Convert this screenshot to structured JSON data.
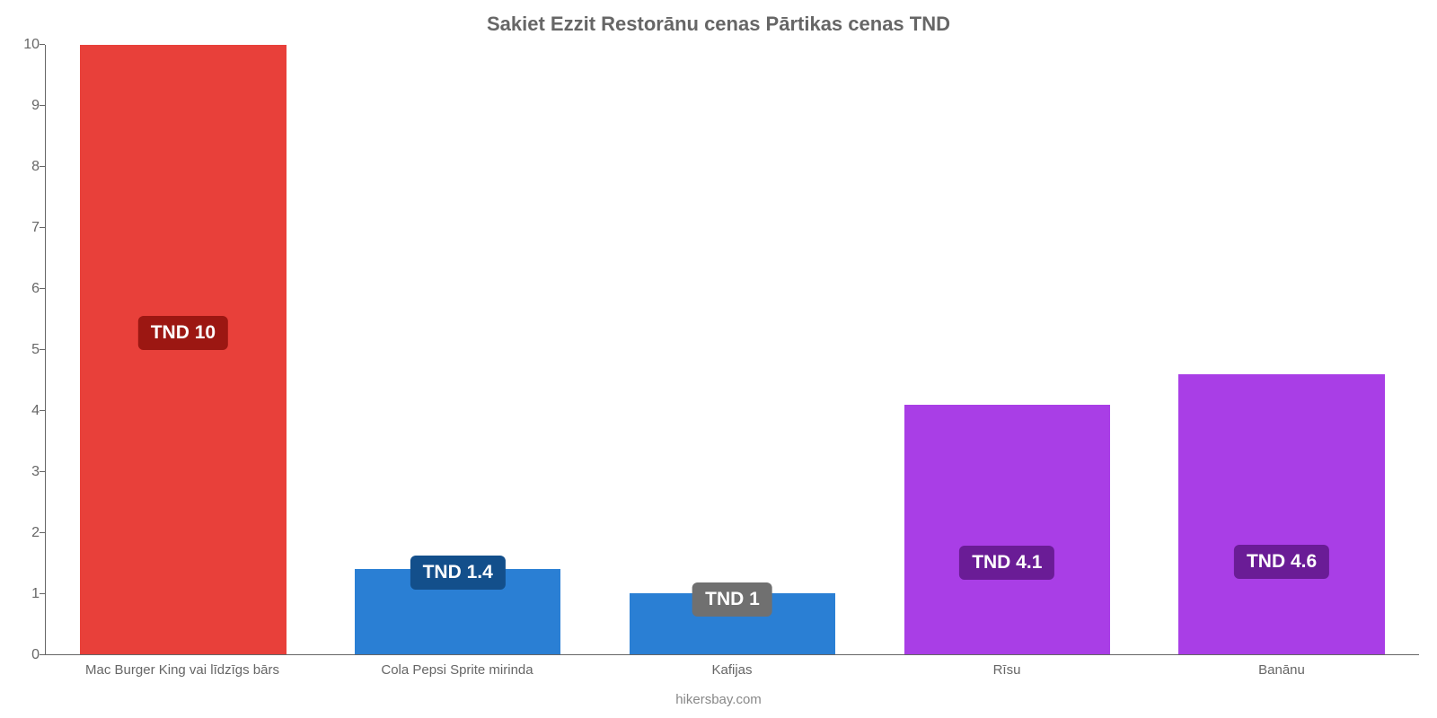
{
  "chart": {
    "type": "bar",
    "title": "Sakiet Ezzit Restorānu cenas Pārtikas cenas TND",
    "title_fontsize": 22,
    "title_color": "#666666",
    "background_color": "#ffffff",
    "axis_color": "#666666",
    "ylim": [
      0,
      10
    ],
    "ytick_step": 1,
    "yticks": [
      "0",
      "1",
      "2",
      "3",
      "4",
      "5",
      "6",
      "7",
      "8",
      "9",
      "10"
    ],
    "bar_width_pct": 75,
    "label_fontsize": 21,
    "xlabel_fontsize": 15,
    "xlabel_color": "#666666",
    "attribution": "hikersbay.com",
    "bars": [
      {
        "category": "Mac Burger King vai līdzīgs bārs",
        "value": 10,
        "value_label": "TND 10",
        "bar_color": "#e8403a",
        "label_bg": "#9c1712",
        "label_bottom_pct": 50
      },
      {
        "category": "Cola Pepsi Sprite mirinda",
        "value": 1.4,
        "value_label": "TND 1.4",
        "bar_color": "#2a7fd4",
        "label_bg": "#134f8b",
        "label_bottom_pct": 76
      },
      {
        "category": "Kafijas",
        "value": 1,
        "value_label": "TND 1",
        "bar_color": "#2a7fd4",
        "label_bg": "#707070",
        "label_bottom_pct": 62
      },
      {
        "category": "Rīsu",
        "value": 4.1,
        "value_label": "TND 4.1",
        "bar_color": "#a93ee6",
        "label_bg": "#6a1c96",
        "label_bottom_pct": 30
      },
      {
        "category": "Banānu",
        "value": 4.6,
        "value_label": "TND 4.6",
        "bar_color": "#a93ee6",
        "label_bg": "#6a1c96",
        "label_bottom_pct": 27
      }
    ]
  }
}
